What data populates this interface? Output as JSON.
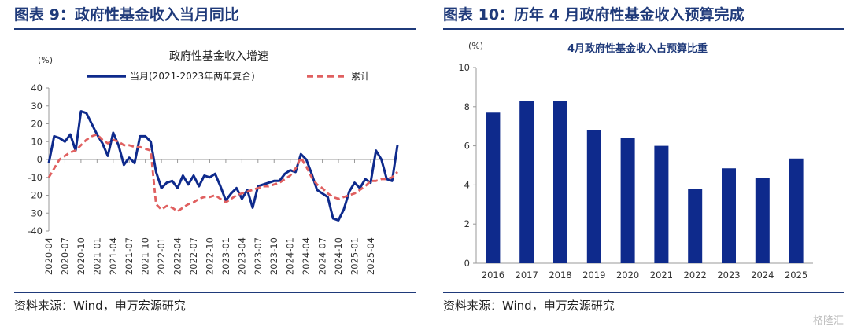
{
  "left_panel": {
    "title": "图表 9：政府性基金收入当月同比",
    "source": "资料来源：Wind，申万宏源研究"
  },
  "right_panel": {
    "title": "图表 10：历年 4 月政府性基金收入预算完成",
    "source": "资料来源：Wind，申万宏源研究"
  },
  "watermark": "格隆汇",
  "colors": {
    "navy": "#0e2a8c",
    "red": "#e06060",
    "bar": "#0e2a8c",
    "title": "#1f3a7a"
  },
  "chart_data": [
    {
      "type": "line",
      "title": "政府性基金收入增速",
      "unit_label": "(%)",
      "ylim": [
        -40,
        40
      ],
      "yticks": [
        -40,
        -30,
        -20,
        -10,
        0,
        10,
        20,
        30,
        40
      ],
      "x_tick_labels": [
        "2020-04",
        "2020-07",
        "2020-10",
        "2021-01",
        "2021-04",
        "2021-07",
        "2021-10",
        "2022-01",
        "2022-04",
        "2022-07",
        "2022-10",
        "2023-01",
        "2023-04",
        "2023-07",
        "2023-10",
        "2024-01",
        "2024-04",
        "2024-07",
        "2024-10",
        "2025-01",
        "2025-04"
      ],
      "x_start": "2020-04",
      "legend_position": "top",
      "series": [
        {
          "name": "当月(2021-2023年两年复合)",
          "style": "solid",
          "values": [
            -2,
            13,
            12,
            10,
            14,
            5,
            27,
            26,
            20,
            14,
            9,
            2,
            15,
            8,
            -3,
            1,
            -2,
            13,
            13,
            10,
            -7,
            -16,
            -13,
            -12,
            -16,
            -9,
            -14,
            -9,
            -15,
            -9,
            -10,
            -8,
            -15,
            -23,
            -19,
            -16,
            -22,
            -17,
            -27,
            -15,
            -14,
            -13,
            -12,
            -12,
            -8,
            -6,
            -7,
            3,
            0,
            -8,
            -17,
            -19,
            -21,
            -33,
            -34,
            -28,
            -18,
            -13,
            -16,
            -11,
            -13,
            5,
            0,
            -11,
            -12,
            8
          ]
        },
        {
          "name": "累计",
          "style": "dashed",
          "values": [
            -10,
            -5,
            0,
            2,
            4,
            5,
            8,
            11,
            13,
            14,
            11,
            9,
            11,
            10,
            8,
            8,
            7,
            7,
            6,
            5,
            -25,
            -28,
            -26,
            -27,
            -29,
            -27,
            -25,
            -24,
            -22,
            -21,
            -21,
            -20,
            -22,
            -24,
            -22,
            -20,
            -19,
            -18,
            -17,
            -16,
            -15,
            -15,
            -14,
            -13,
            -11,
            -9,
            -5,
            1,
            -4,
            -10,
            -14,
            -16,
            -19,
            -21,
            -22,
            -21,
            -20,
            -19,
            -17,
            -15,
            -12,
            -12,
            -11,
            -11,
            -10,
            -7
          ]
        }
      ]
    },
    {
      "type": "bar",
      "title": "4月政府性基金收入占预算比重",
      "unit_label": "(%)",
      "ylim": [
        0,
        10
      ],
      "yticks": [
        0,
        2,
        4,
        6,
        8,
        10
      ],
      "categories": [
        "2016",
        "2017",
        "2018",
        "2019",
        "2020",
        "2021",
        "2022",
        "2023",
        "2024",
        "2025"
      ],
      "values": [
        7.7,
        8.3,
        8.3,
        6.8,
        6.4,
        6.0,
        3.8,
        4.85,
        4.35,
        5.35
      ]
    }
  ]
}
